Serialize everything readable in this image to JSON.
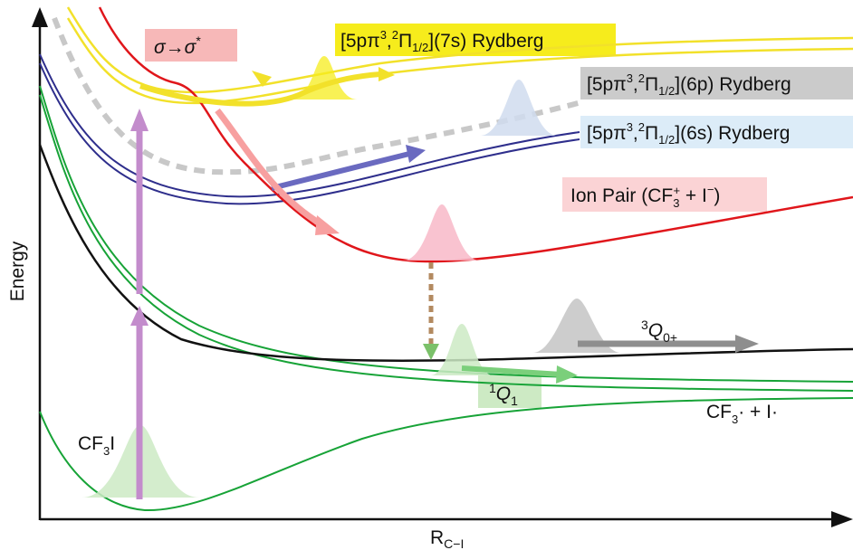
{
  "axes": {
    "y_label": "Energy",
    "x_label_main": "R",
    "x_label_sub": "C−I"
  },
  "labels": {
    "rydberg_7s": {
      "pre": "[5pπ",
      "sup1": "3",
      "mid": ",",
      "sup2": "2",
      "pi": "Π",
      "sub": "1/2",
      "post": "](7s) Rydberg"
    },
    "rydberg_6p": {
      "pre": "[5pπ",
      "sup1": "3",
      "mid": ",",
      "sup2": "2",
      "pi": "Π",
      "sub": "1/2",
      "post": "](6p) Rydberg"
    },
    "rydberg_6s": {
      "pre": "[5pπ",
      "sup1": "3",
      "mid": ",",
      "sup2": "2",
      "pi": "Π",
      "sub": "1/2",
      "post": "](6s) Rydberg"
    },
    "sigma": {
      "a": "σ",
      "arrow": "→",
      "b": "σ",
      "star": "*"
    },
    "ion_pair": {
      "pre": "Ion Pair (CF",
      "sub": "3",
      "sup": "+",
      "mid": " + I",
      "sup2": "−",
      "post": ")"
    },
    "q0": {
      "sup": "3",
      "main": "Q",
      "sub": "0+"
    },
    "q1": {
      "sup": "1",
      "main": "Q",
      "sub": "1"
    },
    "products": {
      "a": "CF",
      "sub": "3",
      "b": "· + I·"
    },
    "reactant": {
      "a": "CF",
      "sub": "3",
      "b": "I"
    }
  },
  "colors": {
    "rydberg_7s": "#f2e12a",
    "rydberg_7s_highlight": "#f6ec1c",
    "rydberg_6p": "#c8c8c8",
    "rydberg_6p_highlight": "#cbcbcb",
    "rydberg_6s": "#2e2e8c",
    "rydberg_6s_highlight": "#dcecf8",
    "sigma_highlight": "#f7b8b8",
    "ion_pair": "#e0161b",
    "ion_pair_highlight": "#fbd3d5",
    "q0": "#111111",
    "q0_highlight": "#a8a8a8",
    "q1": "#17a337",
    "q1_highlight": "#cdeac4",
    "excitation_arrow": "#c38ccc"
  }
}
